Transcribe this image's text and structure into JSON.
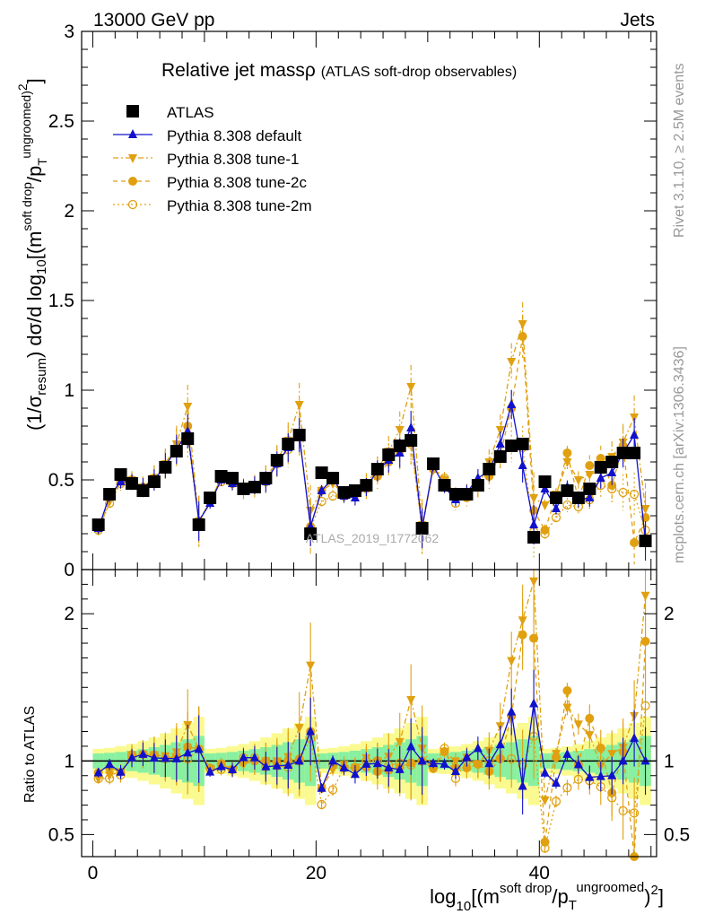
{
  "header": {
    "left": "13000 GeV pp",
    "right": "Jets"
  },
  "side_labels": {
    "rivet": "Rivet 3.1.10, ≥ 2.5M events",
    "mcplots": "mcplots.cern.ch [arXiv:1306.3436]"
  },
  "colors": {
    "atlas": "#000000",
    "default": "#1111cc",
    "orange": "#e0a010",
    "band_green": "#88f0a0",
    "band_yellow": "#fafa90"
  },
  "chart_data": {
    "type": "line",
    "title": "Relative jet massρ",
    "subtitle": "(ATLAS soft-drop observables)",
    "watermark": "ATLAS_2019_I1772062",
    "ylabel_main": "(1/σresum) dσ/d log10[(m soft drop/pT ungroomed)2]",
    "ylabel_ratio": "Ratio to ATLAS",
    "xlabel": "log10[(m soft drop/pT ungroomed)2]",
    "xlim": [
      -1,
      50.5
    ],
    "ylim_main": [
      0,
      3
    ],
    "ylim_ratio": [
      0.35,
      2.3
    ],
    "xticks": [
      "0",
      "20",
      "40"
    ],
    "yticks_main": [
      "0",
      "0.5",
      "1",
      "1.5",
      "2",
      "2.5",
      "3"
    ],
    "yticks_ratio": [
      "0.5",
      "1",
      "2"
    ],
    "legend_position": "top-left",
    "x": [
      0.5,
      1.5,
      2.5,
      3.5,
      4.5,
      5.5,
      6.5,
      7.5,
      8.5,
      9.5,
      10.5,
      11.5,
      12.5,
      13.5,
      14.5,
      15.5,
      16.5,
      17.5,
      18.5,
      19.5,
      20.5,
      21.5,
      22.5,
      23.5,
      24.5,
      25.5,
      26.5,
      27.5,
      28.5,
      29.5,
      30.5,
      31.5,
      32.5,
      33.5,
      34.5,
      35.5,
      36.5,
      37.5,
      38.5,
      39.5,
      40.5,
      41.5,
      42.5,
      43.5,
      44.5,
      45.5,
      46.5,
      47.5,
      48.5,
      49.5
    ],
    "series": [
      {
        "name": "ATLAS",
        "values": [
          0.25,
          0.42,
          0.53,
          0.48,
          0.44,
          0.49,
          0.57,
          0.66,
          0.73,
          0.25,
          0.4,
          0.52,
          0.51,
          0.45,
          0.46,
          0.51,
          0.61,
          0.7,
          0.75,
          0.2,
          0.54,
          0.51,
          0.43,
          0.44,
          0.47,
          0.56,
          0.64,
          0.69,
          0.72,
          0.23,
          0.59,
          0.47,
          0.42,
          0.42,
          0.47,
          0.56,
          0.63,
          0.69,
          0.7,
          0.18,
          0.49,
          0.4,
          0.44,
          0.4,
          0.45,
          0.57,
          0.6,
          0.65,
          0.65,
          0.16
        ]
      },
      {
        "name": "Pythia 8.308 default",
        "values": [
          0.23,
          0.41,
          0.49,
          0.49,
          0.46,
          0.5,
          0.58,
          0.67,
          0.77,
          0.27,
          0.37,
          0.5,
          0.48,
          0.46,
          0.47,
          0.49,
          0.59,
          0.68,
          0.75,
          0.24,
          0.44,
          0.51,
          0.41,
          0.4,
          0.46,
          0.55,
          0.61,
          0.65,
          0.79,
          0.23,
          0.58,
          0.46,
          0.39,
          0.43,
          0.51,
          0.55,
          0.7,
          0.92,
          0.58,
          0.25,
          0.45,
          0.34,
          0.46,
          0.39,
          0.4,
          0.51,
          0.54,
          0.65,
          0.75,
          0.16
        ]
      },
      {
        "name": "Pythia 8.308 tune-1",
        "values": [
          0.22,
          0.38,
          0.49,
          0.5,
          0.46,
          0.51,
          0.59,
          0.7,
          0.91,
          0.27,
          0.38,
          0.51,
          0.48,
          0.44,
          0.46,
          0.51,
          0.61,
          0.72,
          0.92,
          0.33,
          0.44,
          0.48,
          0.42,
          0.42,
          0.48,
          0.56,
          0.66,
          0.78,
          1.02,
          0.25,
          0.56,
          0.5,
          0.42,
          0.43,
          0.46,
          0.6,
          0.78,
          1.16,
          1.37,
          0.4,
          0.36,
          0.42,
          0.6,
          0.5,
          0.53,
          0.55,
          0.63,
          0.71,
          0.85,
          0.34
        ]
      },
      {
        "name": "Pythia 8.308 tune-2c",
        "values": [
          0.23,
          0.4,
          0.49,
          0.49,
          0.46,
          0.51,
          0.58,
          0.68,
          0.8,
          0.27,
          0.38,
          0.51,
          0.48,
          0.45,
          0.46,
          0.51,
          0.6,
          0.7,
          0.76,
          0.24,
          0.44,
          0.5,
          0.41,
          0.42,
          0.45,
          0.52,
          0.6,
          0.66,
          0.71,
          0.23,
          0.56,
          0.5,
          0.4,
          0.4,
          0.46,
          0.52,
          0.64,
          0.9,
          1.3,
          0.33,
          0.22,
          0.41,
          0.65,
          0.39,
          0.58,
          0.62,
          0.47,
          0.69,
          0.15,
          0.29
        ]
      },
      {
        "name": "Pythia 8.308 tune-2m",
        "values": [
          0.22,
          0.37,
          0.48,
          0.5,
          0.46,
          0.51,
          0.58,
          0.68,
          0.74,
          0.27,
          0.38,
          0.49,
          0.48,
          0.46,
          0.47,
          0.49,
          0.59,
          0.67,
          0.75,
          0.23,
          0.38,
          0.41,
          0.41,
          0.42,
          0.47,
          0.56,
          0.62,
          0.68,
          0.7,
          0.23,
          0.57,
          0.51,
          0.37,
          0.42,
          0.46,
          0.56,
          0.64,
          0.7,
          0.68,
          0.21,
          0.2,
          0.29,
          0.36,
          0.35,
          0.39,
          0.47,
          0.45,
          0.43,
          0.42,
          0.22
        ]
      }
    ]
  }
}
